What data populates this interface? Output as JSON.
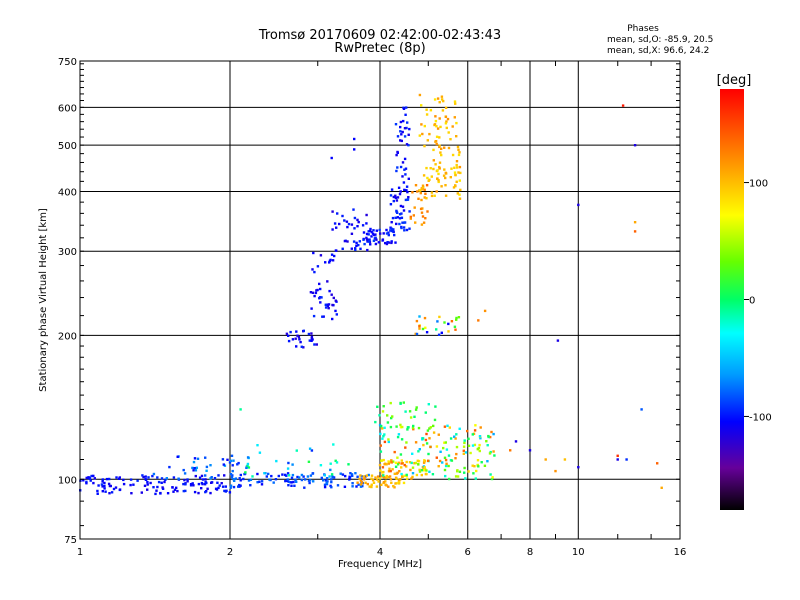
{
  "chart_data": {
    "type": "scatter",
    "title": "Tromsø 20170609 02:42:00-02:43:43",
    "subtitle": "RwPretec (8p)",
    "xlabel": "Frequency [MHz]",
    "ylabel": "Stationary phase Virtual Height [km]",
    "x_scale": "log",
    "y_scale": "log",
    "xlim": [
      1,
      16
    ],
    "ylim": [
      75,
      750
    ],
    "x_ticks": [
      "1",
      "2",
      "4",
      "6",
      "8",
      "10",
      "16"
    ],
    "y_ticks": [
      "75",
      "100",
      "200",
      "300",
      "400",
      "500",
      "600",
      "750"
    ],
    "grid": true,
    "stats": {
      "heading": "Phases",
      "line_o": "mean, sd,O: -85.9, 20.5",
      "line_x": "mean, sd,X:  96.6, 24.2"
    },
    "colorbar": {
      "label": "[deg]",
      "min": -180,
      "max": 180,
      "ticks": [
        "100",
        "0",
        "-100"
      ],
      "tick_values": [
        100,
        0,
        -100
      ]
    },
    "clusters": [
      {
        "f": [
          1.0,
          2.0
        ],
        "h": [
          93,
          102
        ],
        "phase": [
          -110,
          -90
        ],
        "n": 130
      },
      {
        "f": [
          1.4,
          2.1
        ],
        "h": [
          100,
          112
        ],
        "phase": [
          -105,
          -60
        ],
        "n": 35
      },
      {
        "f": [
          2.0,
          3.8
        ],
        "h": [
          96,
          103
        ],
        "phase": [
          -100,
          -70
        ],
        "n": 110
      },
      {
        "f": [
          2.0,
          3.5
        ],
        "h": [
          100,
          120
        ],
        "phase": [
          -90,
          10
        ],
        "n": 35
      },
      {
        "f": [
          3.6,
          4.4
        ],
        "h": [
          96,
          102
        ],
        "phase": [
          95,
          125
        ],
        "n": 45
      },
      {
        "f": [
          4.0,
          5.0
        ],
        "h": [
          98,
          110
        ],
        "phase": [
          80,
          120
        ],
        "n": 60
      },
      {
        "f": [
          4.0,
          6.8
        ],
        "h": [
          100,
          130
        ],
        "phase": [
          -60,
          150
        ],
        "n": 170
      },
      {
        "f": [
          3.9,
          5.2
        ],
        "h": [
          125,
          145
        ],
        "phase": [
          -20,
          60
        ],
        "n": 30
      },
      {
        "f": [
          2.6,
          3.0
        ],
        "h": [
          188,
          205
        ],
        "phase": [
          -115,
          -90
        ],
        "n": 25
      },
      {
        "f": [
          2.9,
          3.3
        ],
        "h": [
          215,
          300
        ],
        "phase": [
          -115,
          -90
        ],
        "n": 45
      },
      {
        "f": [
          3.2,
          3.8
        ],
        "h": [
          300,
          380
        ],
        "phase": [
          -115,
          -90
        ],
        "n": 40
      },
      {
        "f": [
          3.7,
          4.3
        ],
        "h": [
          310,
          335
        ],
        "phase": [
          -110,
          -85
        ],
        "n": 50
      },
      {
        "f": [
          4.2,
          4.6
        ],
        "h": [
          330,
          420
        ],
        "phase": [
          -110,
          -85
        ],
        "n": 50
      },
      {
        "f": [
          4.3,
          4.6
        ],
        "h": [
          420,
          600
        ],
        "phase": [
          -110,
          -85
        ],
        "n": 35
      },
      {
        "f": [
          4.6,
          5.0
        ],
        "h": [
          340,
          420
        ],
        "phase": [
          110,
          140
        ],
        "n": 25
      },
      {
        "f": [
          4.8,
          5.8
        ],
        "h": [
          380,
          640
        ],
        "phase": [
          80,
          120
        ],
        "n": 120
      },
      {
        "f": [
          4.7,
          5.9
        ],
        "h": [
          200,
          220
        ],
        "phase": [
          -100,
          140
        ],
        "n": 25
      }
    ],
    "points": [
      {
        "f": 3.55,
        "h": 515,
        "phase": -100
      },
      {
        "f": 3.55,
        "h": 490,
        "phase": -100
      },
      {
        "f": 3.2,
        "h": 470,
        "phase": -100
      },
      {
        "f": 12.3,
        "h": 605,
        "phase": 170
      },
      {
        "f": 13.0,
        "h": 500,
        "phase": -110
      },
      {
        "f": 10.0,
        "h": 375,
        "phase": -110
      },
      {
        "f": 13.0,
        "h": 345,
        "phase": 110
      },
      {
        "f": 13.0,
        "h": 330,
        "phase": 140
      },
      {
        "f": 9.1,
        "h": 195,
        "phase": -110
      },
      {
        "f": 13.4,
        "h": 140,
        "phase": -80
      },
      {
        "f": 12.0,
        "h": 112,
        "phase": 160
      },
      {
        "f": 12.0,
        "h": 110,
        "phase": -110
      },
      {
        "f": 12.5,
        "h": 110,
        "phase": -90
      },
      {
        "f": 14.4,
        "h": 108,
        "phase": 140
      },
      {
        "f": 9.4,
        "h": 110,
        "phase": 100
      },
      {
        "f": 8.6,
        "h": 110,
        "phase": 110
      },
      {
        "f": 8.0,
        "h": 115,
        "phase": -110
      },
      {
        "f": 7.5,
        "h": 120,
        "phase": -110
      },
      {
        "f": 7.3,
        "h": 115,
        "phase": 130
      },
      {
        "f": 10.0,
        "h": 106,
        "phase": -110
      },
      {
        "f": 9.0,
        "h": 104,
        "phase": 120
      },
      {
        "f": 14.7,
        "h": 96,
        "phase": 110
      },
      {
        "f": 6.5,
        "h": 225,
        "phase": 120
      },
      {
        "f": 6.3,
        "h": 215,
        "phase": 130
      },
      {
        "f": 2.1,
        "h": 140,
        "phase": -10
      }
    ]
  }
}
